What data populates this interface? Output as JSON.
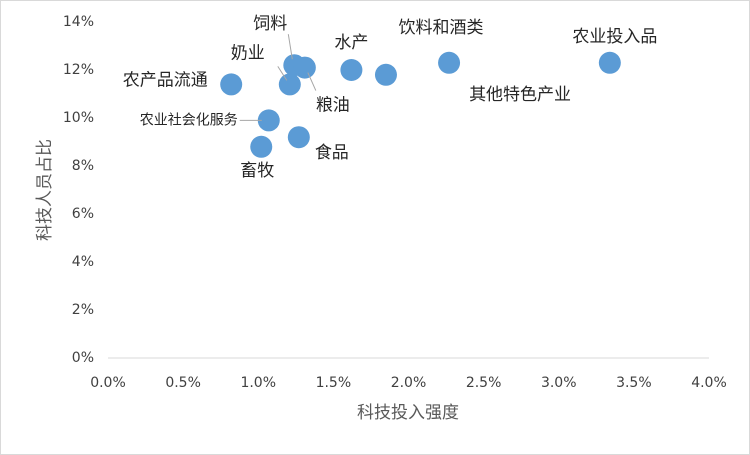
{
  "chart_data": {
    "type": "scatter",
    "x_label": "科技投入强度",
    "y_label": "科技人员占比",
    "labels": [
      "农产品流通",
      "农业社会化服务",
      "畜牧",
      "奶业",
      "饲料",
      "粮油",
      "食品",
      "水产",
      "饮料和酒类",
      "其他特色产业",
      "农业投入品"
    ],
    "x": [
      0.82,
      1.07,
      1.02,
      1.21,
      1.24,
      1.31,
      1.27,
      1.62,
      1.85,
      2.27,
      3.34
    ],
    "values": [
      11.4,
      9.9,
      8.8,
      11.4,
      12.2,
      12.1,
      9.2,
      12.0,
      11.8,
      12.3,
      12.3
    ],
    "color": "#5b9bd5",
    "xlim": [
      0,
      4
    ],
    "xticks": [
      {
        "value": 0,
        "label": "0.0%"
      },
      {
        "value": 0.5,
        "label": "0.5%"
      },
      {
        "value": 1,
        "label": "1.0%"
      },
      {
        "value": 1.5,
        "label": "1.5%"
      },
      {
        "value": 2,
        "label": "2.0%"
      },
      {
        "value": 2.5,
        "label": "2.5%"
      },
      {
        "value": 3,
        "label": "3.0%"
      },
      {
        "value": 3.5,
        "label": "3.5%"
      },
      {
        "value": 4,
        "label": "4.0%"
      }
    ],
    "ylim": [
      0,
      14
    ],
    "yticks": [
      {
        "value": 0,
        "label": "0%"
      },
      {
        "value": 2,
        "label": "2%"
      },
      {
        "value": 4,
        "label": "4%"
      },
      {
        "value": 6,
        "label": "6%"
      },
      {
        "value": 8,
        "label": "8%"
      },
      {
        "value": 10,
        "label": "10%"
      },
      {
        "value": 12,
        "label": "12%"
      },
      {
        "value": 14,
        "label": "14%"
      }
    ],
    "grid": false
  }
}
